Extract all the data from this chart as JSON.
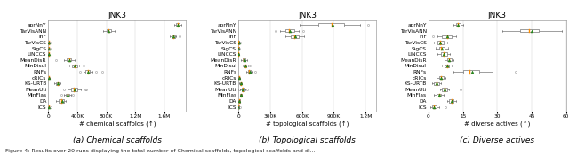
{
  "subplot_titles": [
    "JNK3",
    "JNK3",
    "JNK3"
  ],
  "xlabels": [
    "# chemical scaffolds (↑)",
    "# topological scaffolds (↑)",
    "# diverse actives (↑)"
  ],
  "captions": [
    "(a) Chemical scaffolds",
    "(b) Topological scaffolds",
    "(c) Diverse actives"
  ],
  "figure_caption": "Figure 4: Results over 20 runs displaying the total number of Chemical scaffolds, topological scaffolds and di...",
  "methods": [
    "aprNnY",
    "TarVisANN",
    "InF",
    "TarVisCS",
    "SigCS",
    "LINCCS",
    "MeanDisR",
    "MinDisul",
    "RNFs",
    "cRICs",
    "KS-URTB",
    "MeanUti",
    "MinFlas",
    "DA",
    "ICS"
  ],
  "chem_data": {
    "aprNnY": {
      "median": 1780000,
      "q1": 1760000,
      "q3": 1810000,
      "whislo": 1740000,
      "whishi": 1830000,
      "mean": 1782000,
      "fliers": []
    },
    "TarVisANN": {
      "median": 830000,
      "q1": 800000,
      "q3": 870000,
      "whislo": 760000,
      "whishi": 910000,
      "mean": 835000,
      "fliers": []
    },
    "InF": {
      "median": 1720000,
      "q1": 1700000,
      "q3": 1745000,
      "whislo": 1670000,
      "whishi": 1760000,
      "mean": 1722000,
      "fliers": [
        1810000
      ]
    },
    "TarVisCS": {
      "median": 4000,
      "q1": 2500,
      "q3": 6500,
      "whislo": 1200,
      "whishi": 9000,
      "mean": 4500,
      "fliers": [
        22000
      ]
    },
    "SigCS": {
      "median": 3500,
      "q1": 2000,
      "q3": 5500,
      "whislo": 1000,
      "whishi": 8500,
      "mean": 4000,
      "fliers": [
        15000
      ]
    },
    "LINCCS": {
      "median": 1800,
      "q1": 1000,
      "q3": 3500,
      "whislo": 500,
      "whishi": 5500,
      "mean": 2200,
      "fliers": []
    },
    "MeanDisR": {
      "median": 285000,
      "q1": 255000,
      "q3": 320000,
      "whislo": 220000,
      "whishi": 360000,
      "mean": 288000,
      "fliers": [
        110000
      ]
    },
    "MinDisul": {
      "median": 360000,
      "q1": 325000,
      "q3": 395000,
      "whislo": 295000,
      "whishi": 420000,
      "mean": 362000,
      "fliers": [
        480000
      ]
    },
    "RNFs": {
      "median": 545000,
      "q1": 515000,
      "q3": 575000,
      "whislo": 480000,
      "whishi": 610000,
      "mean": 547000,
      "fliers": [
        440000,
        660000,
        740000
      ]
    },
    "cRICs": {
      "median": 7000,
      "q1": 4500,
      "q3": 11000,
      "whislo": 2000,
      "whishi": 16000,
      "mean": 8000,
      "fliers": []
    },
    "KS-URTB": {
      "median": 125000,
      "q1": 105000,
      "q3": 150000,
      "whislo": 82000,
      "whishi": 170000,
      "mean": 127000,
      "fliers": []
    },
    "MeanUti": {
      "median": 355000,
      "q1": 315000,
      "q3": 405000,
      "whislo": 265000,
      "whishi": 455000,
      "mean": 358000,
      "fliers": [
        215000,
        505000,
        525000
      ]
    },
    "MinFlas": {
      "median": 265000,
      "q1": 245000,
      "q3": 288000,
      "whislo": 215000,
      "whishi": 315000,
      "mean": 266000,
      "fliers": [
        175000,
        335000
      ]
    },
    "DA": {
      "median": 185000,
      "q1": 145000,
      "q3": 215000,
      "whislo": 105000,
      "whishi": 245000,
      "mean": 187000,
      "fliers": []
    },
    "ICS": {
      "median": 3000,
      "q1": 1500,
      "q3": 6000,
      "whislo": 500,
      "whishi": 10000,
      "mean": 3500,
      "fliers": [
        28000
      ]
    }
  },
  "topo_data": {
    "aprNnY": {
      "median": 880000,
      "q1": 750000,
      "q3": 1000000,
      "whislo": 580000,
      "whishi": 1150000,
      "mean": 890000,
      "fliers": [
        1220000
      ]
    },
    "TarVisANN": {
      "median": 480000,
      "q1": 440000,
      "q3": 525000,
      "whislo": 390000,
      "whishi": 570000,
      "mean": 485000,
      "fliers": [
        350000,
        610000
      ]
    },
    "InF": {
      "median": 530000,
      "q1": 490000,
      "q3": 570000,
      "whislo": 440000,
      "whishi": 620000,
      "mean": 532000,
      "fliers": []
    },
    "TarVisCS": {
      "median": 2800,
      "q1": 1800,
      "q3": 4500,
      "whislo": 900,
      "whishi": 7000,
      "mean": 3200,
      "fliers": [
        18000
      ]
    },
    "SigCS": {
      "median": 2200,
      "q1": 1400,
      "q3": 3800,
      "whislo": 700,
      "whishi": 5800,
      "mean": 2700,
      "fliers": [
        11000
      ]
    },
    "LINCCS": {
      "median": 1400,
      "q1": 700,
      "q3": 2800,
      "whislo": 350,
      "whishi": 4200,
      "mean": 1600,
      "fliers": []
    },
    "MeanDisR": {
      "median": 52000,
      "q1": 40000,
      "q3": 67000,
      "whislo": 27000,
      "whishi": 83000,
      "mean": 54000,
      "fliers": []
    },
    "MinDisul": {
      "median": 62000,
      "q1": 50000,
      "q3": 77000,
      "whislo": 37000,
      "whishi": 93000,
      "mean": 64000,
      "fliers": [
        112000
      ]
    },
    "RNFs": {
      "median": 103000,
      "q1": 91000,
      "q3": 118000,
      "whislo": 75000,
      "whishi": 135000,
      "mean": 105000,
      "fliers": [
        155000
      ]
    },
    "cRICs": {
      "median": 4800,
      "q1": 2900,
      "q3": 7800,
      "whislo": 1400,
      "whishi": 11500,
      "mean": 5300,
      "fliers": []
    },
    "KS-URTB": {
      "median": 21000,
      "q1": 16000,
      "q3": 27000,
      "whislo": 10500,
      "whishi": 33000,
      "mean": 22000,
      "fliers": []
    },
    "MeanUti": {
      "median": 42000,
      "q1": 32000,
      "q3": 54000,
      "whislo": 19000,
      "whishi": 67000,
      "mean": 43000,
      "fliers": [
        11000,
        79000
      ]
    },
    "MinFlas": {
      "median": 23000,
      "q1": 18000,
      "q3": 29000,
      "whislo": 12500,
      "whishi": 36000,
      "mean": 24000,
      "fliers": []
    },
    "DA": {
      "median": 8500,
      "q1": 5500,
      "q3": 13000,
      "whislo": 2200,
      "whishi": 19000,
      "mean": 9000,
      "fliers": []
    },
    "ICS": {
      "median": 1900,
      "q1": 950,
      "q3": 3400,
      "whislo": 380,
      "whishi": 5200,
      "mean": 2100,
      "fliers": [
        380,
        480,
        17000
      ]
    }
  },
  "diverse_data": {
    "aprNnY": {
      "median": 13,
      "q1": 12,
      "q3": 14,
      "whislo": 11,
      "whishi": 15,
      "mean": 13,
      "fliers": []
    },
    "TarVisANN": {
      "median": 44,
      "q1": 40,
      "q3": 48,
      "whislo": 32,
      "whishi": 58,
      "mean": 45,
      "fliers": []
    },
    "InF": {
      "median": 8,
      "q1": 6,
      "q3": 10,
      "whislo": 4,
      "whishi": 12,
      "mean": 8,
      "fliers": [
        2
      ]
    },
    "TarVisCS": {
      "median": 5,
      "q1": 4,
      "q3": 6.5,
      "whislo": 2.5,
      "whishi": 8,
      "mean": 5.2,
      "fliers": []
    },
    "SigCS": {
      "median": 5.5,
      "q1": 4.5,
      "q3": 7,
      "whislo": 3,
      "whishi": 8.5,
      "mean": 5.7,
      "fliers": []
    },
    "LINCCS": {
      "median": 6.5,
      "q1": 5.5,
      "q3": 8,
      "whislo": 4,
      "whishi": 9.5,
      "mean": 6.7,
      "fliers": []
    },
    "MeanDisR": {
      "median": 9,
      "q1": 8,
      "q3": 10,
      "whislo": 7,
      "whishi": 11,
      "mean": 9,
      "fliers": []
    },
    "MinDisul": {
      "median": 8,
      "q1": 7,
      "q3": 9,
      "whislo": 6,
      "whishi": 10,
      "mean": 8,
      "fliers": []
    },
    "RNFs": {
      "median": 18,
      "q1": 15,
      "q3": 22,
      "whislo": 11,
      "whishi": 28,
      "mean": 19,
      "fliers": [
        38
      ]
    },
    "cRICs": {
      "median": 5.5,
      "q1": 4.5,
      "q3": 6.5,
      "whislo": 3.5,
      "whishi": 7.5,
      "mean": 5.5,
      "fliers": []
    },
    "KS-URTB": {
      "median": 3.5,
      "q1": 2.5,
      "q3": 4.5,
      "whislo": 1.5,
      "whishi": 5.5,
      "mean": 3.5,
      "fliers": []
    },
    "MeanUti": {
      "median": 7,
      "q1": 6,
      "q3": 8,
      "whislo": 5,
      "whishi": 9,
      "mean": 7,
      "fliers": [
        14
      ]
    },
    "MinFlas": {
      "median": 4.5,
      "q1": 3.5,
      "q3": 5.5,
      "whislo": 2.5,
      "whishi": 6.5,
      "mean": 4.5,
      "fliers": []
    },
    "DA": {
      "median": 10,
      "q1": 9,
      "q3": 11,
      "whislo": 8,
      "whishi": 12,
      "mean": 10,
      "fliers": []
    },
    "ICS": {
      "median": 2.5,
      "q1": 1.5,
      "q3": 3.5,
      "whislo": 0.8,
      "whishi": 4.5,
      "mean": 2.5,
      "fliers": [
        7.5
      ]
    }
  },
  "chem_xlim": [
    0,
    1900000
  ],
  "topo_xlim": [
    0,
    1300000
  ],
  "diverse_xlim": [
    0,
    60
  ],
  "box_facecolor": "#ffffff",
  "median_color": "#ff8c00",
  "mean_marker_color": "#2e8b22",
  "whisker_color": "#555555",
  "flier_marker": "o",
  "flier_color": "#888888",
  "grid_color": "#cccccc",
  "bg_color": "#ffffff",
  "title_fontsize": 6.5,
  "label_fontsize": 5.0,
  "tick_fontsize": 4.2,
  "caption_fontsize": 6.5,
  "fig_caption_fontsize": 4.5
}
